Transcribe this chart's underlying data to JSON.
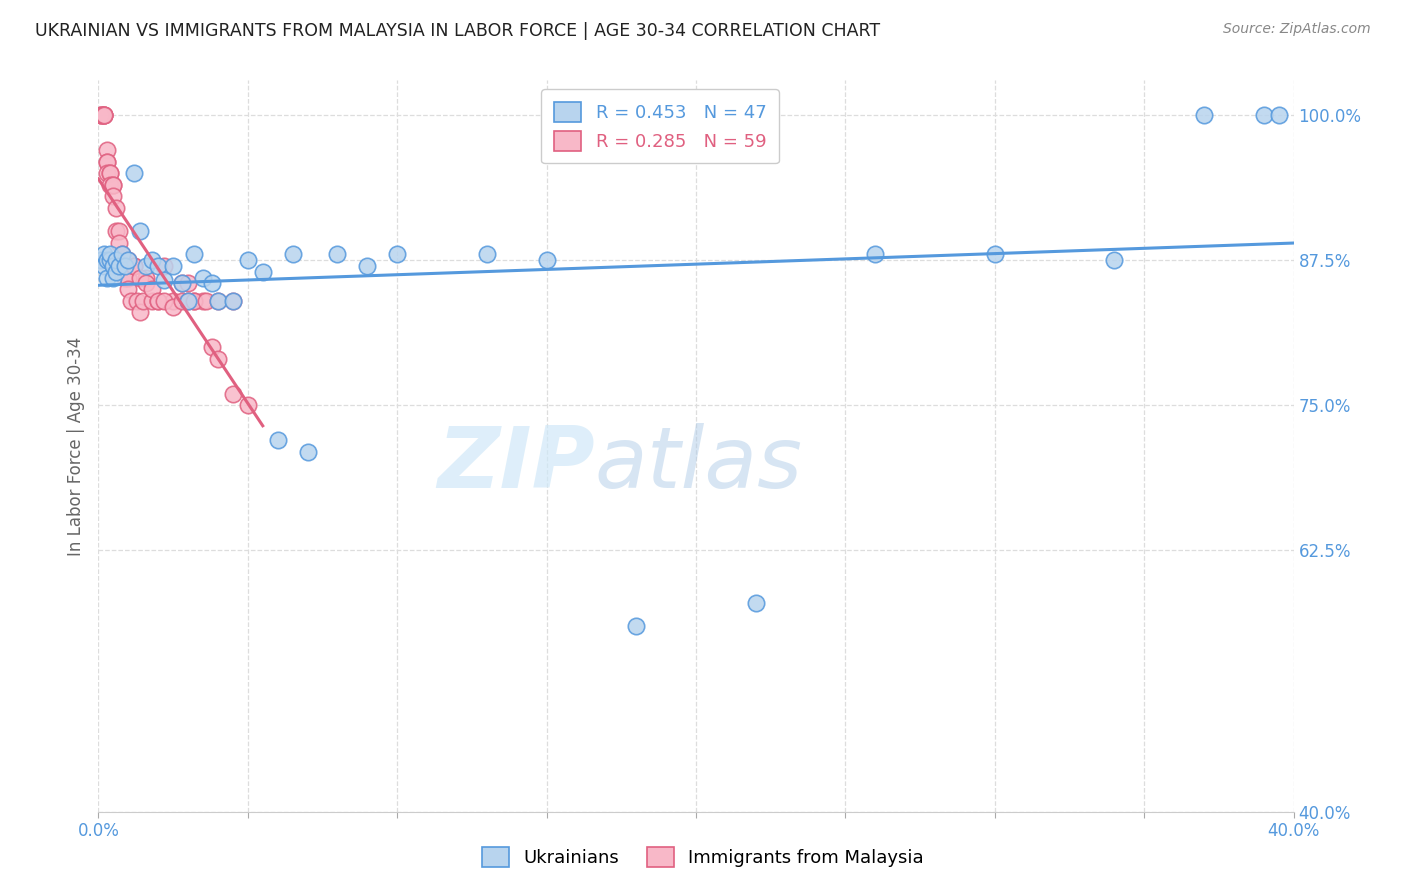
{
  "title": "UKRAINIAN VS IMMIGRANTS FROM MALAYSIA IN LABOR FORCE | AGE 30-34 CORRELATION CHART",
  "source": "Source: ZipAtlas.com",
  "ylabel": "In Labor Force | Age 30-34",
  "xlim": [
    0.0,
    0.4
  ],
  "ylim": [
    0.4,
    1.03
  ],
  "yticks": [
    0.4,
    0.625,
    0.75,
    0.875,
    1.0
  ],
  "ytick_labels": [
    "40.0%",
    "62.5%",
    "75.0%",
    "87.5%",
    "100.0%"
  ],
  "xticks": [
    0.0,
    0.05,
    0.1,
    0.15,
    0.2,
    0.25,
    0.3,
    0.35,
    0.4
  ],
  "xtick_labels": [
    "0.0%",
    "",
    "",
    "",
    "",
    "",
    "",
    "",
    "40.0%"
  ],
  "ukrainian_x": [
    0.001,
    0.002,
    0.002,
    0.003,
    0.003,
    0.004,
    0.004,
    0.005,
    0.005,
    0.006,
    0.006,
    0.007,
    0.008,
    0.009,
    0.01,
    0.012,
    0.014,
    0.016,
    0.018,
    0.02,
    0.022,
    0.025,
    0.028,
    0.03,
    0.032,
    0.035,
    0.038,
    0.04,
    0.045,
    0.05,
    0.055,
    0.06,
    0.065,
    0.07,
    0.08,
    0.09,
    0.1,
    0.13,
    0.15,
    0.18,
    0.22,
    0.26,
    0.3,
    0.34,
    0.37,
    0.39,
    0.395
  ],
  "ukrainian_y": [
    0.875,
    0.88,
    0.87,
    0.875,
    0.86,
    0.875,
    0.88,
    0.87,
    0.86,
    0.865,
    0.875,
    0.87,
    0.88,
    0.87,
    0.875,
    0.95,
    0.9,
    0.87,
    0.875,
    0.87,
    0.858,
    0.87,
    0.855,
    0.84,
    0.88,
    0.86,
    0.855,
    0.84,
    0.84,
    0.875,
    0.865,
    0.72,
    0.88,
    0.71,
    0.88,
    0.87,
    0.88,
    0.88,
    0.875,
    0.56,
    0.58,
    0.88,
    0.88,
    0.875,
    1.0,
    1.0,
    1.0
  ],
  "malaysia_x": [
    0.001,
    0.001,
    0.001,
    0.002,
    0.002,
    0.002,
    0.002,
    0.003,
    0.003,
    0.003,
    0.003,
    0.004,
    0.004,
    0.004,
    0.005,
    0.005,
    0.005,
    0.006,
    0.006,
    0.007,
    0.007,
    0.008,
    0.008,
    0.009,
    0.009,
    0.01,
    0.01,
    0.011,
    0.012,
    0.013,
    0.014,
    0.015,
    0.016,
    0.018,
    0.02,
    0.022,
    0.025,
    0.028,
    0.03,
    0.032,
    0.035,
    0.038,
    0.04,
    0.045,
    0.01,
    0.012,
    0.014,
    0.016,
    0.018,
    0.02,
    0.022,
    0.025,
    0.028,
    0.03,
    0.032,
    0.036,
    0.04,
    0.045,
    0.05
  ],
  "malaysia_y": [
    1.0,
    1.0,
    1.0,
    1.0,
    1.0,
    1.0,
    1.0,
    0.97,
    0.96,
    0.96,
    0.95,
    0.95,
    0.95,
    0.94,
    0.94,
    0.94,
    0.93,
    0.92,
    0.9,
    0.9,
    0.89,
    0.88,
    0.87,
    0.87,
    0.86,
    0.86,
    0.85,
    0.84,
    0.87,
    0.84,
    0.83,
    0.84,
    0.86,
    0.84,
    0.84,
    0.87,
    0.84,
    0.855,
    0.855,
    0.84,
    0.84,
    0.8,
    0.79,
    0.76,
    0.875,
    0.87,
    0.86,
    0.855,
    0.85,
    0.84,
    0.84,
    0.835,
    0.84,
    0.84,
    0.84,
    0.84,
    0.84,
    0.84,
    0.75
  ],
  "R_ukrainian": 0.453,
  "N_ukrainian": 47,
  "R_malaysia": 0.285,
  "N_malaysia": 59,
  "color_ukrainian": "#b8d4ee",
  "color_ukrainian_line": "#5599dd",
  "color_malaysia": "#f8b8c8",
  "color_malaysia_line": "#e06080",
  "color_axis_labels": "#5599dd",
  "watermark_zip": "ZIP",
  "watermark_atlas": "atlas",
  "background_color": "#ffffff",
  "grid_color": "#dddddd"
}
